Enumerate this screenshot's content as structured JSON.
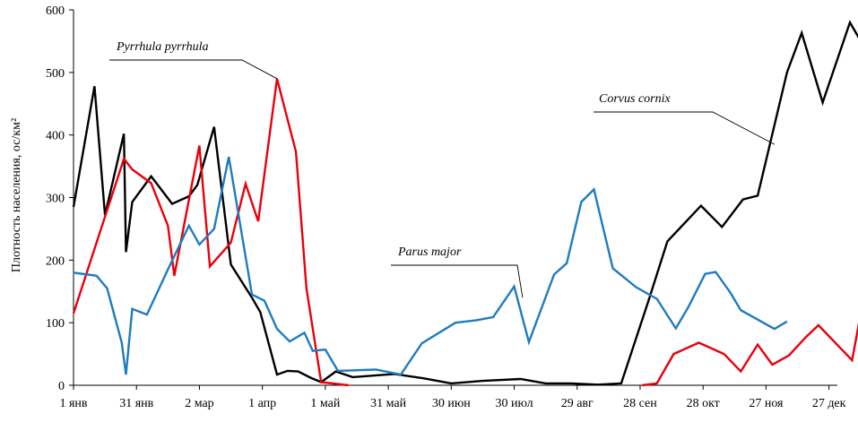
{
  "chart_data": {
    "type": "line",
    "title": "",
    "xlabel": "",
    "ylabel": "Плотность населения, ос/км²",
    "ylim": [
      0,
      600
    ],
    "yticks": [
      0,
      100,
      200,
      300,
      400,
      500,
      600
    ],
    "xlim": [
      1,
      365
    ],
    "xtick_labels": [
      "1 янв",
      "31 янв",
      "2 мар",
      "1 апр",
      "1 май",
      "31 май",
      "30 июн",
      "30 июл",
      "29 авг",
      "28 сен",
      "28 окт",
      "27 ноя",
      "27 дек"
    ],
    "xtick_days": [
      1,
      31,
      61,
      91,
      121,
      151,
      181,
      211,
      241,
      271,
      301,
      331,
      361
    ],
    "grid": false,
    "series": [
      {
        "name": "Corvus cornix",
        "color": "#000000",
        "points": [
          [
            1,
            285
          ],
          [
            11,
            478
          ],
          [
            16,
            272
          ],
          [
            25,
            402
          ],
          [
            26,
            213
          ],
          [
            29,
            293
          ],
          [
            38,
            334
          ],
          [
            48,
            290
          ],
          [
            56,
            302
          ],
          [
            60,
            320
          ],
          [
            68,
            413
          ],
          [
            76,
            193
          ],
          [
            86,
            140
          ],
          [
            90,
            117
          ],
          [
            98,
            17
          ],
          [
            103,
            23
          ],
          [
            108,
            22
          ],
          [
            114,
            12
          ],
          [
            119,
            5
          ],
          [
            126,
            22
          ],
          [
            134,
            13
          ],
          [
            154,
            18
          ],
          [
            168,
            11
          ],
          [
            181,
            3
          ],
          [
            196,
            7
          ],
          [
            214,
            10
          ],
          [
            226,
            3
          ],
          [
            238,
            3
          ],
          [
            251,
            1
          ],
          [
            262,
            3
          ],
          [
            275,
            135
          ],
          [
            284,
            230
          ],
          [
            300,
            287
          ],
          [
            310,
            253
          ],
          [
            320,
            297
          ],
          [
            327,
            303
          ],
          [
            341,
            500
          ],
          [
            348,
            563
          ],
          [
            358,
            452
          ],
          [
            371,
            580
          ],
          [
            377,
            545
          ]
        ]
      },
      {
        "name": "Pyrrhula pyrrhula",
        "color": "#e8000b",
        "points": [
          [
            1,
            115
          ],
          [
            25,
            362
          ],
          [
            29,
            345
          ],
          [
            38,
            323
          ],
          [
            46,
            255
          ],
          [
            49,
            175
          ],
          [
            61,
            383
          ],
          [
            66,
            190
          ],
          [
            76,
            228
          ],
          [
            83,
            322
          ],
          [
            89,
            262
          ],
          [
            98,
            490
          ],
          [
            107,
            373
          ],
          [
            112,
            155
          ],
          [
            119,
            5
          ],
          [
            132,
            0
          ],
          [
            272,
            0
          ],
          [
            279,
            3
          ],
          [
            287,
            50
          ],
          [
            299,
            68
          ],
          [
            311,
            50
          ],
          [
            319,
            22
          ],
          [
            327,
            65
          ],
          [
            334,
            33
          ],
          [
            342,
            48
          ],
          [
            350,
            77
          ],
          [
            356,
            96
          ],
          [
            372,
            40
          ],
          [
            378,
            148
          ]
        ]
      },
      {
        "name": "Parus major",
        "color": "#1f7bbf",
        "points": [
          [
            1,
            180
          ],
          [
            12,
            175
          ],
          [
            17,
            155
          ],
          [
            24,
            68
          ],
          [
            26,
            17
          ],
          [
            29,
            122
          ],
          [
            36,
            113
          ],
          [
            46,
            185
          ],
          [
            56,
            255
          ],
          [
            61,
            225
          ],
          [
            68,
            250
          ],
          [
            75,
            365
          ],
          [
            86,
            145
          ],
          [
            92,
            135
          ],
          [
            98,
            90
          ],
          [
            104,
            70
          ],
          [
            111,
            84
          ],
          [
            115,
            55
          ],
          [
            121,
            57
          ],
          [
            127,
            23
          ],
          [
            145,
            25
          ],
          [
            157,
            17
          ],
          [
            167,
            67
          ],
          [
            183,
            100
          ],
          [
            193,
            104
          ],
          [
            201,
            109
          ],
          [
            211,
            158
          ],
          [
            218,
            69
          ],
          [
            230,
            177
          ],
          [
            236,
            195
          ],
          [
            243,
            293
          ],
          [
            249,
            313
          ],
          [
            258,
            187
          ],
          [
            269,
            157
          ],
          [
            279,
            138
          ],
          [
            288,
            91
          ],
          [
            294,
            125
          ],
          [
            302,
            178
          ],
          [
            307,
            181
          ],
          [
            314,
            148
          ],
          [
            319,
            120
          ],
          [
            335,
            90
          ],
          [
            341,
            102
          ]
        ]
      }
    ],
    "annotations": [
      {
        "text": "Pyrrhula pyrrhula",
        "target": [
          98,
          490
        ]
      },
      {
        "text": "Corvus cornix",
        "target": [
          335,
          385
        ]
      },
      {
        "text": "Parus major",
        "target": [
          215,
          140
        ]
      }
    ]
  }
}
